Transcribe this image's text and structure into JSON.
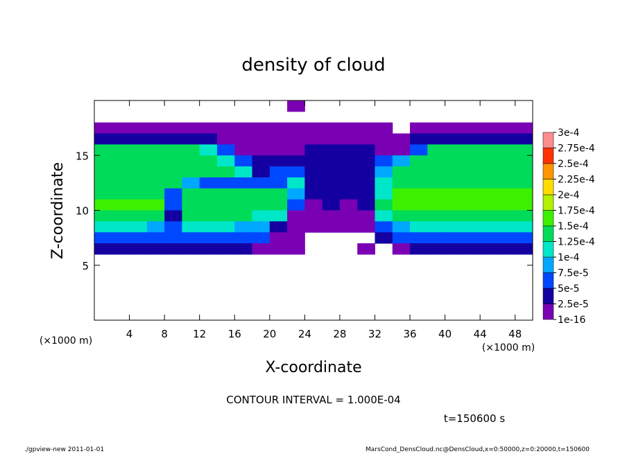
{
  "chart_data": {
    "type": "heatmap",
    "title": "density of cloud",
    "xlabel": "X-coordinate",
    "ylabel": "Z-coordinate",
    "xunit": "(×1000 m)",
    "yunit": "(×1000 m)",
    "annotation": "CONTOUR INTERVAL = 1.000E-04",
    "time_label": "t=150600 s",
    "footer_left": "./gpview-new  2011-01-01",
    "footer_right": "MarsCond_DensCloud.nc@DensCloud,x=0:50000,z=0:20000,t=150600",
    "xlim": [
      0,
      50
    ],
    "ylim": [
      0,
      20
    ],
    "xticks": [
      4,
      8,
      12,
      16,
      20,
      24,
      28,
      32,
      36,
      40,
      44,
      48
    ],
    "yticks": [
      5,
      10,
      15
    ],
    "x": [
      1,
      3,
      5,
      7,
      9,
      11,
      13,
      15,
      17,
      19,
      21,
      23,
      25,
      27,
      29,
      31,
      33,
      35,
      37,
      39,
      41,
      43,
      45,
      47,
      49
    ],
    "y": [
      19.5,
      18.5,
      17.5,
      16.5,
      15.5,
      14.5,
      13.5,
      12.5,
      11.5,
      10.5,
      9.5,
      8.5,
      7.5,
      6.5,
      5.5,
      4.5,
      3.5,
      2.5,
      1.5,
      0.5
    ],
    "z": [
      [
        null,
        null,
        null,
        null,
        null,
        null,
        null,
        null,
        null,
        null,
        null,
        1e-05,
        null,
        null,
        null,
        null,
        null,
        null,
        null,
        null,
        null,
        null,
        null,
        null,
        null
      ],
      [
        null,
        null,
        null,
        null,
        null,
        null,
        null,
        null,
        null,
        null,
        null,
        null,
        null,
        null,
        null,
        null,
        null,
        null,
        null,
        null,
        null,
        null,
        null,
        null,
        null
      ],
      [
        1e-05,
        1e-05,
        1e-05,
        1e-05,
        1e-05,
        1e-05,
        1e-05,
        1e-05,
        1e-05,
        1e-05,
        1e-05,
        1e-05,
        1e-05,
        1e-05,
        1e-05,
        1e-05,
        1e-05,
        null,
        1e-05,
        1e-05,
        1e-05,
        1e-05,
        1e-05,
        1e-05,
        1e-05
      ],
      [
        3e-05,
        3e-05,
        3e-05,
        3e-05,
        3e-05,
        3e-05,
        3e-05,
        1e-05,
        1e-05,
        1e-05,
        1e-05,
        1e-05,
        1e-05,
        1e-05,
        1e-05,
        1e-05,
        1e-05,
        1e-05,
        3e-05,
        3e-05,
        3e-05,
        3e-05,
        3e-05,
        3e-05,
        3e-05
      ],
      [
        0.00013,
        0.00013,
        0.00013,
        0.00013,
        0.00013,
        0.00013,
        0.0001,
        5e-05,
        1e-05,
        1e-05,
        1e-05,
        1e-05,
        3e-05,
        3e-05,
        3e-05,
        3e-05,
        1e-05,
        1e-05,
        6e-05,
        0.00013,
        0.00013,
        0.00013,
        0.00013,
        0.00013,
        0.00013
      ],
      [
        0.000135,
        0.000135,
        0.000135,
        0.000135,
        0.000135,
        0.000135,
        0.000135,
        0.00012,
        6e-05,
        3e-05,
        3e-05,
        3e-05,
        3e-05,
        3e-05,
        3e-05,
        3e-05,
        5e-05,
        8e-05,
        0.000135,
        0.000135,
        0.000135,
        0.000135,
        0.000135,
        0.000135,
        0.000135
      ],
      [
        0.00014,
        0.00014,
        0.00014,
        0.00014,
        0.00014,
        0.00014,
        0.00014,
        0.00014,
        0.0001,
        4e-05,
        5e-05,
        6e-05,
        3e-05,
        3e-05,
        3e-05,
        3e-05,
        9e-05,
        0.00014,
        0.00014,
        0.00014,
        0.00014,
        0.00014,
        0.00014,
        0.00014,
        0.00014
      ],
      [
        0.00014,
        0.00014,
        0.00014,
        0.00014,
        0.00014,
        8e-05,
        6e-05,
        6e-05,
        5e-05,
        5e-05,
        5e-05,
        0.00011,
        4e-05,
        3e-05,
        3e-05,
        3e-05,
        0.0001,
        0.000145,
        0.000145,
        0.000145,
        0.000145,
        0.000145,
        0.000145,
        0.000145,
        0.000145
      ],
      [
        0.000145,
        0.000145,
        0.000145,
        0.000145,
        6e-05,
        0.00014,
        0.00014,
        0.00014,
        0.00014,
        0.00014,
        0.00013,
        9e-05,
        4e-05,
        3e-05,
        3e-05,
        3e-05,
        0.00012,
        0.00015,
        0.00015,
        0.00015,
        0.00015,
        0.00015,
        0.00015,
        0.00015,
        0.00015
      ],
      [
        0.00015,
        0.00015,
        0.00015,
        0.00015,
        5e-05,
        0.000145,
        0.000145,
        0.000145,
        0.000145,
        0.000145,
        0.000145,
        7e-05,
        1e-05,
        3e-05,
        1e-05,
        3e-05,
        0.00013,
        0.00015,
        0.00015,
        0.00015,
        0.00015,
        0.00015,
        0.00015,
        0.00015,
        0.00015
      ],
      [
        0.000145,
        0.000145,
        0.000145,
        0.000145,
        4e-05,
        0.00014,
        0.00014,
        0.00014,
        0.00014,
        0.00011,
        0.00011,
        2e-05,
        1e-05,
        1e-05,
        1e-05,
        1e-05,
        0.0001,
        0.000145,
        0.000145,
        0.000145,
        0.000145,
        0.000145,
        0.000145,
        0.000145,
        0.000145
      ],
      [
        0.00011,
        0.00011,
        0.00011,
        8e-05,
        5e-05,
        0.0001,
        0.0001,
        0.0001,
        8e-05,
        8e-05,
        3e-05,
        1e-05,
        1e-05,
        1e-05,
        1e-05,
        1e-05,
        5e-05,
        8e-05,
        0.000105,
        0.000105,
        0.000105,
        0.000105,
        0.000105,
        0.000105,
        0.000105
      ],
      [
        7e-05,
        7e-05,
        7e-05,
        7e-05,
        7e-05,
        7e-05,
        7e-05,
        7e-05,
        7e-05,
        7e-05,
        2e-05,
        1e-05,
        null,
        null,
        null,
        null,
        3e-05,
        6e-05,
        6e-05,
        6e-05,
        6e-05,
        6e-05,
        6e-05,
        6e-05,
        6e-05
      ],
      [
        3e-05,
        3e-05,
        3e-05,
        3e-05,
        3e-05,
        3e-05,
        3e-05,
        3e-05,
        3e-05,
        1e-05,
        1e-05,
        1e-05,
        null,
        null,
        null,
        1e-05,
        null,
        1e-05,
        3e-05,
        3e-05,
        3e-05,
        3e-05,
        3e-05,
        3e-05,
        3e-05
      ],
      [
        null,
        null,
        null,
        null,
        null,
        null,
        null,
        null,
        null,
        null,
        null,
        null,
        null,
        null,
        null,
        null,
        null,
        null,
        null,
        null,
        null,
        null,
        null,
        null,
        null
      ],
      [
        null,
        null,
        null,
        null,
        null,
        null,
        null,
        null,
        null,
        null,
        null,
        null,
        null,
        null,
        null,
        null,
        null,
        null,
        null,
        null,
        null,
        null,
        null,
        null,
        null
      ],
      [
        null,
        null,
        null,
        null,
        null,
        null,
        null,
        null,
        null,
        null,
        null,
        null,
        null,
        null,
        null,
        null,
        null,
        null,
        null,
        null,
        null,
        null,
        null,
        null,
        null
      ],
      [
        null,
        null,
        null,
        null,
        null,
        null,
        null,
        null,
        null,
        null,
        null,
        null,
        null,
        null,
        null,
        null,
        null,
        null,
        null,
        null,
        null,
        null,
        null,
        null,
        null
      ],
      [
        null,
        null,
        null,
        null,
        null,
        null,
        null,
        null,
        null,
        null,
        null,
        null,
        null,
        null,
        null,
        null,
        null,
        null,
        null,
        null,
        null,
        null,
        null,
        null,
        null
      ],
      [
        null,
        null,
        null,
        null,
        null,
        null,
        null,
        null,
        null,
        null,
        null,
        null,
        null,
        null,
        null,
        null,
        null,
        null,
        null,
        null,
        null,
        null,
        null,
        null,
        null
      ]
    ],
    "colorbar_ticks": [
      {
        "value": 1e-16,
        "label": "1e-16"
      },
      {
        "value": 2.5e-05,
        "label": "2.5e-5"
      },
      {
        "value": 5e-05,
        "label": "5e-5"
      },
      {
        "value": 7.5e-05,
        "label": "7.5e-5"
      },
      {
        "value": 0.0001,
        "label": "1e-4"
      },
      {
        "value": 0.000125,
        "label": "1.25e-4"
      },
      {
        "value": 0.00015,
        "label": "1.5e-4"
      },
      {
        "value": 0.000175,
        "label": "1.75e-4"
      },
      {
        "value": 0.0002,
        "label": "2e-4"
      },
      {
        "value": 0.000225,
        "label": "2.25e-4"
      },
      {
        "value": 0.00025,
        "label": "2.5e-4"
      },
      {
        "value": 0.000275,
        "label": "2.75e-4"
      },
      {
        "value": 0.0003,
        "label": "3e-4"
      }
    ],
    "colors": [
      "#7a00b4",
      "#1400a0",
      "#0048ff",
      "#00a8ff",
      "#00e6c8",
      "#00dc5a",
      "#3cf000",
      "#b4f000",
      "#ffdc00",
      "#ff9600",
      "#ff3200",
      "#ff8c8c"
    ]
  }
}
